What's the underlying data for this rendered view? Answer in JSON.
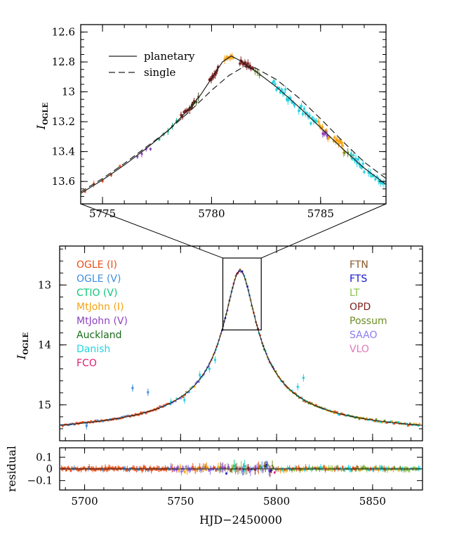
{
  "chart_data": [
    {
      "id": "inset",
      "type": "scatter",
      "xlim": [
        5774,
        5788
      ],
      "ylim": [
        13.75,
        12.55
      ],
      "ylabel": "I",
      "ylabel_sub": "OGLE",
      "x_ticks": [
        5775,
        5780,
        5785
      ],
      "y_ticks": [
        12.6,
        12.8,
        13,
        13.2,
        13.4,
        13.6
      ],
      "y_tick_labels": [
        "12.6",
        "12.8",
        "13",
        "13.2",
        "13.4",
        "13.6"
      ],
      "legend": [
        {
          "label": "planetary",
          "style": "solid"
        },
        {
          "label": "single",
          "style": "dashed"
        }
      ],
      "model_planetary": [
        [
          5774,
          13.68
        ],
        [
          5775,
          13.59
        ],
        [
          5776,
          13.49
        ],
        [
          5777,
          13.38
        ],
        [
          5778,
          13.26
        ],
        [
          5779,
          13.11
        ],
        [
          5779.5,
          13.02
        ],
        [
          5780,
          12.91
        ],
        [
          5780.5,
          12.8
        ],
        [
          5780.9,
          12.76
        ],
        [
          5781.3,
          12.79
        ],
        [
          5782,
          12.86
        ],
        [
          5783,
          12.97
        ],
        [
          5784,
          13.1
        ],
        [
          5785,
          13.24
        ],
        [
          5786,
          13.38
        ],
        [
          5787,
          13.51
        ],
        [
          5788,
          13.62
        ]
      ],
      "model_single": [
        [
          5774,
          13.67
        ],
        [
          5775,
          13.58
        ],
        [
          5776,
          13.48
        ],
        [
          5777,
          13.37
        ],
        [
          5778,
          13.26
        ],
        [
          5779,
          13.13
        ],
        [
          5780,
          12.99
        ],
        [
          5780.8,
          12.89
        ],
        [
          5781.5,
          12.83
        ],
        [
          5782,
          12.84
        ],
        [
          5783,
          12.92
        ],
        [
          5784,
          13.04
        ],
        [
          5785,
          13.18
        ],
        [
          5786,
          13.33
        ],
        [
          5787,
          13.47
        ],
        [
          5788,
          13.58
        ]
      ],
      "clusters": [
        {
          "x0": 5774.2,
          "x1": 5775.8,
          "n": 5,
          "color": "#e8501a",
          "scatter": 0.02
        },
        {
          "x0": 5776.6,
          "x1": 5777.2,
          "n": 4,
          "color": "#8e44c2",
          "scatter": 0.03
        },
        {
          "x0": 5777.6,
          "x1": 5778.4,
          "n": 5,
          "color": "#10b981",
          "scatter": 0.02
        },
        {
          "x0": 5778.6,
          "x1": 5779.2,
          "n": 10,
          "color": "#7f1d1d",
          "scatter": 0.03
        },
        {
          "x0": 5779.0,
          "x1": 5779.4,
          "n": 5,
          "color": "#3a4f1a",
          "scatter": 0.02
        },
        {
          "x0": 5779.9,
          "x1": 5780.3,
          "n": 10,
          "color": "#7f1d1d",
          "scatter": 0.03
        },
        {
          "x0": 5780.6,
          "x1": 5781.0,
          "n": 9,
          "color": "#f5a312",
          "scatter": 0.02
        },
        {
          "x0": 5781.3,
          "x1": 5781.9,
          "n": 14,
          "color": "#7f1d1d",
          "scatter": 0.03
        },
        {
          "x0": 5782.0,
          "x1": 5782.2,
          "n": 3,
          "color": "#6b8e23",
          "scatter": 0.02
        },
        {
          "x0": 5782.8,
          "x1": 5783.8,
          "n": 18,
          "color": "#22d3e0",
          "scatter": 0.05
        },
        {
          "x0": 5784.0,
          "x1": 5784.8,
          "n": 14,
          "color": "#22d3e0",
          "scatter": 0.05
        },
        {
          "x0": 5784.9,
          "x1": 5785.4,
          "n": 9,
          "color": "#f5a312",
          "scatter": 0.04
        },
        {
          "x0": 5785.1,
          "x1": 5785.3,
          "n": 4,
          "color": "#8e44c2",
          "scatter": 0.04
        },
        {
          "x0": 5785.6,
          "x1": 5786.1,
          "n": 12,
          "color": "#f5a312",
          "scatter": 0.05
        },
        {
          "x0": 5786.1,
          "x1": 5786.4,
          "n": 3,
          "color": "#6b8e23",
          "scatter": 0.02
        },
        {
          "x0": 5786.4,
          "x1": 5787.0,
          "n": 12,
          "color": "#22d3e0",
          "scatter": 0.05
        },
        {
          "x0": 5787.2,
          "x1": 5787.9,
          "n": 10,
          "color": "#22d3e0",
          "scatter": 0.05
        }
      ]
    },
    {
      "id": "main",
      "type": "scatter",
      "xlim": [
        5687,
        5876
      ],
      "ylim": [
        15.6,
        12.35
      ],
      "ylabel": "I",
      "ylabel_sub": "OGLE",
      "x_ticks": [
        5700,
        5750,
        5800,
        5850
      ],
      "y_ticks": [
        13,
        14,
        15
      ],
      "y_tick_labels": [
        "13",
        "14",
        "15"
      ],
      "zoom_box": {
        "x": [
          5772,
          5792
        ],
        "y": [
          12.55,
          13.75
        ]
      },
      "model": {
        "t0": 5781,
        "base": 15.58,
        "amp": 2.82,
        "tau": 9.5
      },
      "legend_left": [
        {
          "label": "OGLE (I)",
          "color": "#e8501a"
        },
        {
          "label": "OGLE (V)",
          "color": "#3d8fe0"
        },
        {
          "label": "CTIO (V)",
          "color": "#10c77a"
        },
        {
          "label": "MtJohn (I)",
          "color": "#f5a312"
        },
        {
          "label": "MtJohn (V)",
          "color": "#8e44c2"
        },
        {
          "label": "Auckland",
          "color": "#1a6b1a"
        },
        {
          "label": "Danish",
          "color": "#22d3e0"
        },
        {
          "label": "FCO",
          "color": "#e11d74"
        }
      ],
      "legend_right": [
        {
          "label": "FTN",
          "color": "#8b5a2b"
        },
        {
          "label": "FTS",
          "color": "#1515cf"
        },
        {
          "label": "LT",
          "color": "#8bc34a"
        },
        {
          "label": "OPD",
          "color": "#7f1d1d"
        },
        {
          "label": "Possum",
          "color": "#6b8e23"
        },
        {
          "label": "SAAO",
          "color": "#8b7cf0"
        },
        {
          "label": "VLO",
          "color": "#e07ab8"
        }
      ]
    },
    {
      "id": "residual",
      "type": "scatter",
      "xlim": [
        5687,
        5876
      ],
      "ylim": [
        -0.18,
        0.18
      ],
      "xlabel": "HJD−2450000",
      "ylabel": "residual",
      "x_ticks": [
        5700,
        5750,
        5800,
        5850
      ],
      "y_ticks": [
        0.1,
        0,
        -0.1
      ],
      "y_tick_labels": [
        "0.1",
        "0",
        "−0.1"
      ]
    }
  ]
}
